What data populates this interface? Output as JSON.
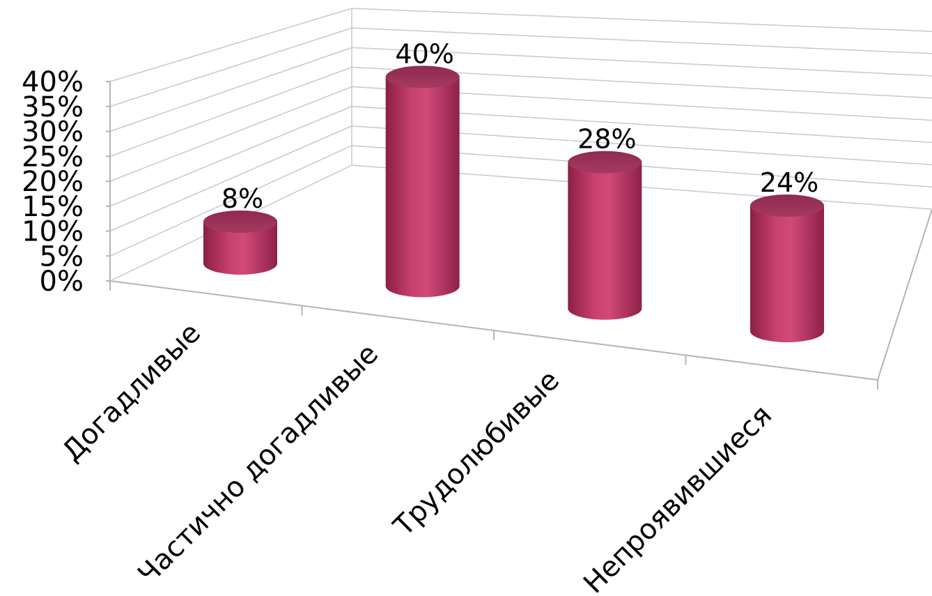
{
  "chart_data": {
    "type": "bar",
    "style": "3d-cylinder",
    "title": "",
    "xlabel": "",
    "ylabel": "",
    "categories": [
      "Догадливые",
      "Частично догадливые",
      "Трудолюбивые",
      "Непроявившиеся"
    ],
    "series": [
      {
        "values": [
          8,
          40,
          28,
          24
        ]
      }
    ],
    "data_labels": [
      "8%",
      "40%",
      "28%",
      "24%"
    ],
    "y_ticks": [
      "0%",
      "5%",
      "10%",
      "15%",
      "20%",
      "25%",
      "30%",
      "35%",
      "40%"
    ],
    "ylim": [
      0,
      40
    ],
    "grid": true,
    "legend": "none",
    "bar_color": "#c83c6c"
  }
}
